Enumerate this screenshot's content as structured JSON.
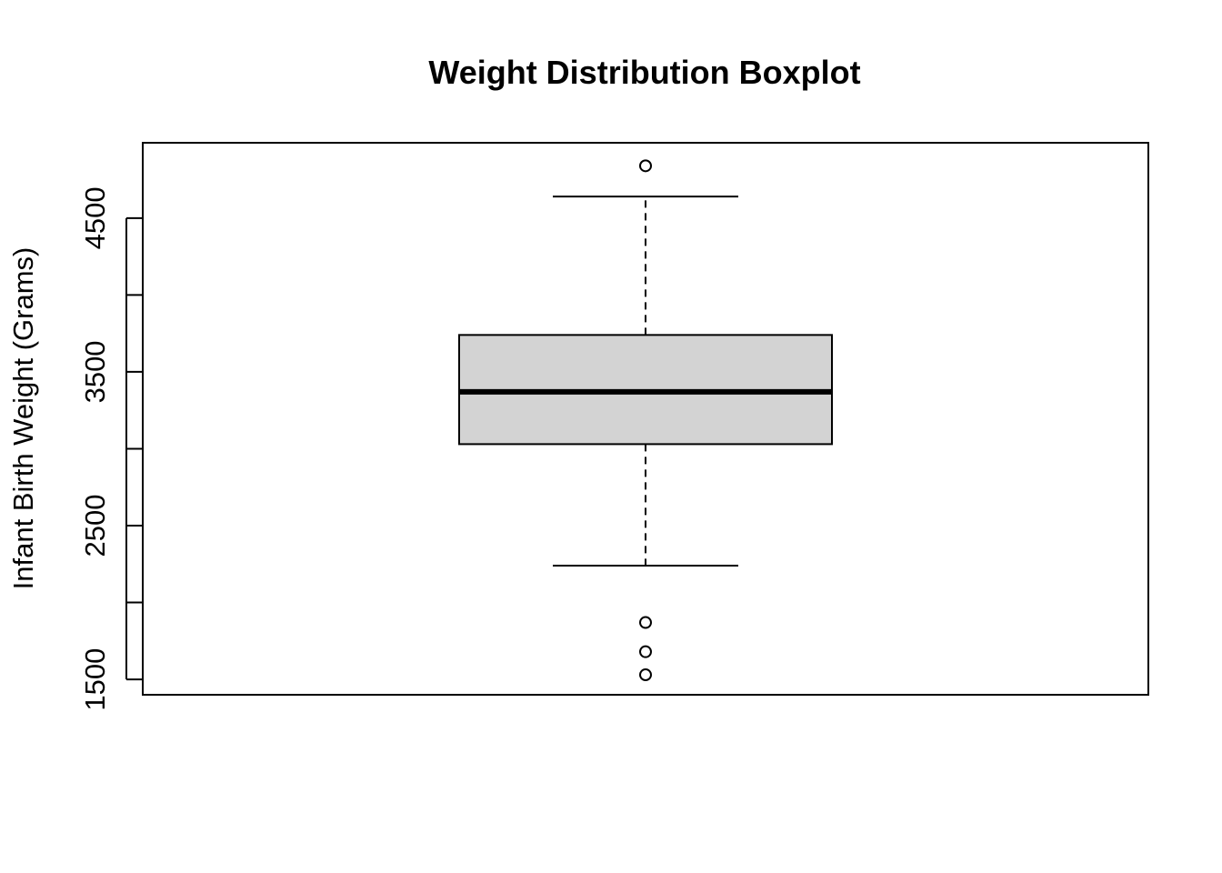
{
  "chart_data": {
    "type": "boxplot",
    "title": "Weight Distribution Boxplot",
    "xlabel": "",
    "ylabel": "Infant Birth Weight (Grams)",
    "ylim": [
      1400,
      4990
    ],
    "yticks": [
      1500,
      2000,
      2500,
      3000,
      3500,
      4000,
      4500
    ],
    "ytick_labels": [
      "1500",
      "",
      "2500",
      "",
      "3500",
      "",
      "4500"
    ],
    "grid": false,
    "box": {
      "whisker_low": 2240,
      "q1": 3030,
      "median": 3370,
      "q3": 3740,
      "whisker_high": 4640,
      "outliers": [
        4840,
        1870,
        1680,
        1530
      ]
    },
    "colors": {
      "box_fill": "#d3d3d3",
      "stroke": "#000000"
    }
  }
}
